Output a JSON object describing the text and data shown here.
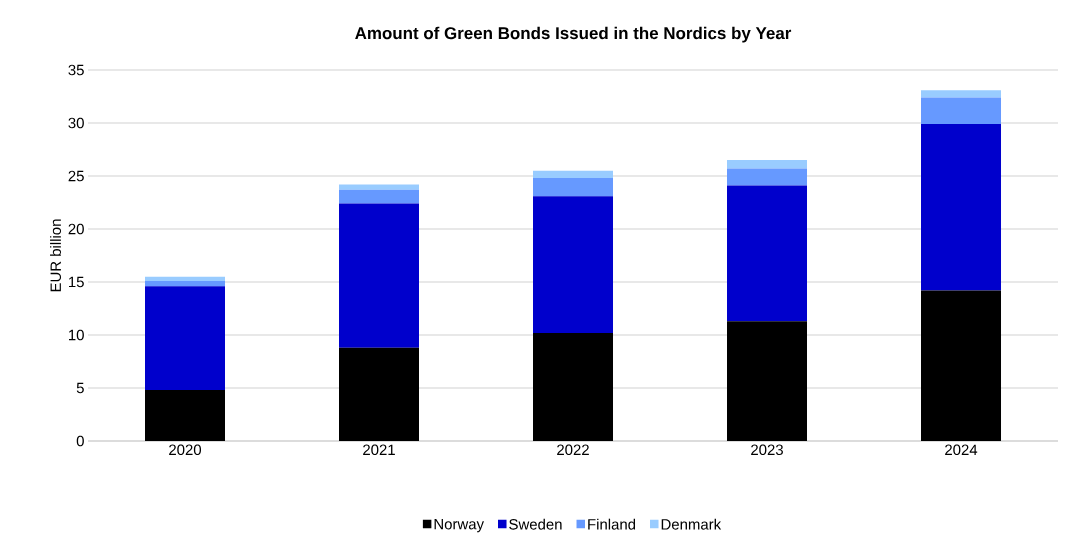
{
  "chart_data": {
    "type": "bar",
    "title": "Amount of Green Bonds Issued in the Nordics by Year",
    "ylabel": "EUR billion",
    "categories": [
      "2020",
      "2021",
      "2022",
      "2023",
      "2024"
    ],
    "series": [
      {
        "name": "Norway",
        "color": "#000000",
        "values": [
          4.8,
          8.8,
          10.2,
          11.3,
          14.2
        ]
      },
      {
        "name": "Sweden",
        "color": "#0000cc",
        "values": [
          9.8,
          13.6,
          12.9,
          12.8,
          15.7
        ]
      },
      {
        "name": "Finland",
        "color": "#6699ff",
        "values": [
          0.5,
          1.3,
          1.7,
          1.6,
          2.5
        ]
      },
      {
        "name": "Denmark",
        "color": "#99ccff",
        "values": [
          0.4,
          0.5,
          0.7,
          0.8,
          0.7
        ]
      }
    ],
    "stacked": true,
    "ylim": [
      0,
      35
    ],
    "yticks": [
      0,
      5,
      10,
      15,
      20,
      25,
      30,
      35
    ],
    "grid": "y",
    "legend": "bottom"
  }
}
